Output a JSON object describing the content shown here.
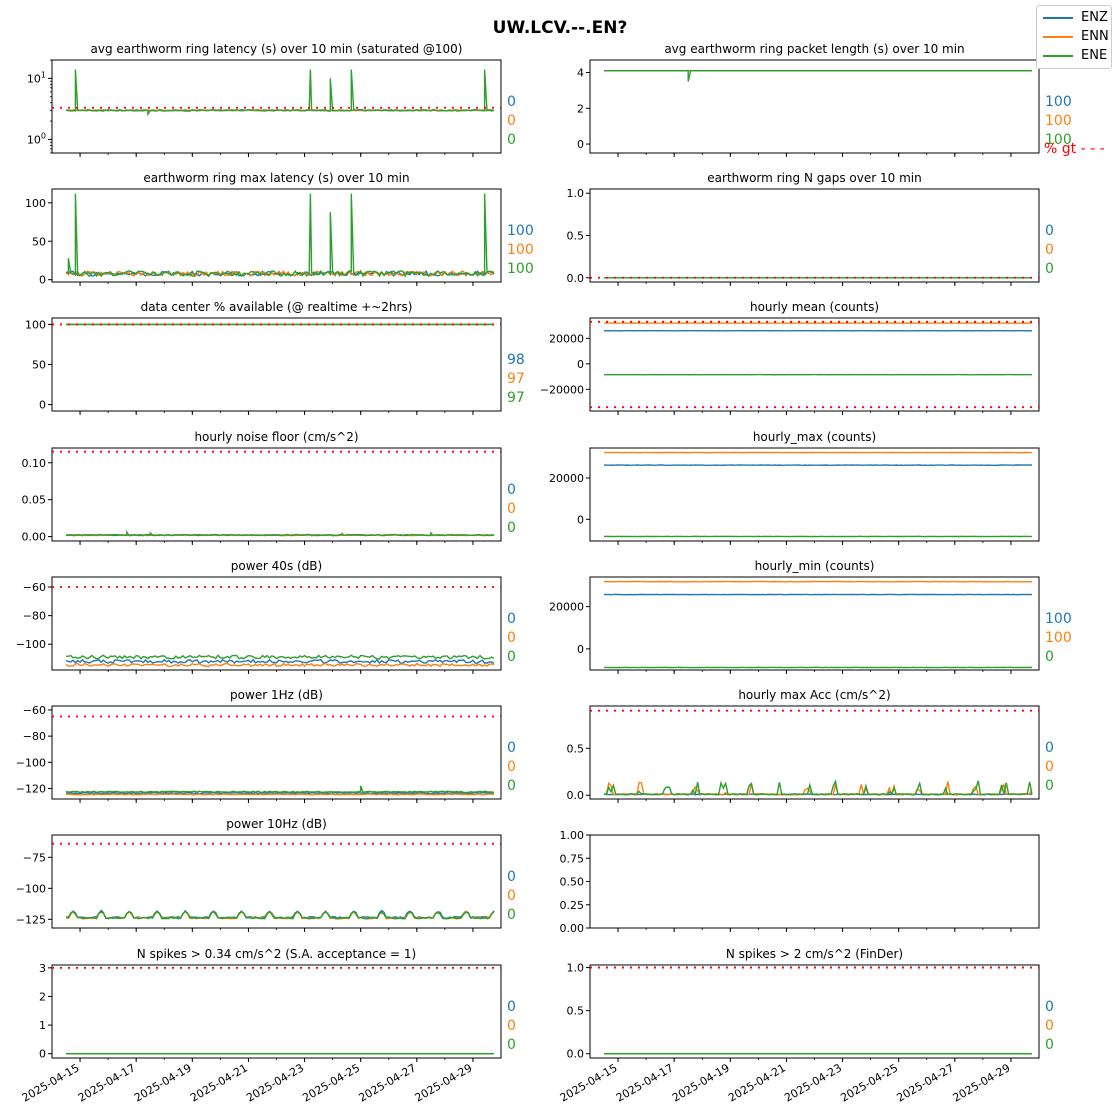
{
  "suptitle": "UW.LCV.--.EN?",
  "legend": [
    {
      "name": "ENZ",
      "color": "#1f77b4"
    },
    {
      "name": "ENN",
      "color": "#ff7f0e"
    },
    {
      "name": "ENE",
      "color": "#2ca02c"
    }
  ],
  "colors": {
    "ENZ": "#1f77b4",
    "ENN": "#ff7f0e",
    "ENE": "#2ca02c",
    "threshold": "#ff0000"
  },
  "chart_data": [
    {
      "type": "line",
      "title": "avg earthworm ring latency (s)   over 10 min (saturated @100)",
      "yscale": "log",
      "ylim": [
        0.6,
        20
      ],
      "yticks": [
        {
          "v": 1,
          "label": "10",
          "sup": "0"
        },
        {
          "v": 10,
          "label": "10",
          "sup": "1"
        }
      ],
      "threshold": 3.3,
      "series": [
        {
          "name": "ENZ",
          "base": 3.0,
          "noise": 0.05,
          "spikes": []
        },
        {
          "name": "ENN",
          "base": 3.0,
          "noise": 0.05,
          "spikes": []
        },
        {
          "name": "ENE",
          "base": 3.0,
          "noise": 0.08,
          "spikes": [
            [
              "2025-04-14 20:00",
              14
            ],
            [
              "2025-04-23 05:00",
              14
            ],
            [
              "2025-04-23 22:00",
              10
            ],
            [
              "2025-04-24 16:00",
              14
            ],
            [
              "2025-04-29 10:00",
              14
            ]
          ],
          "dips": [
            [
              "2025-04-17 10:00",
              2.6
            ]
          ]
        }
      ],
      "side_values": [
        "0",
        "0",
        "0"
      ]
    },
    {
      "type": "line",
      "title": "avg earthworm ring packet length (s)   over 10 min",
      "yscale": "linear",
      "ylim": [
        -0.5,
        4.7
      ],
      "yticks": [
        {
          "v": 0,
          "label": "0"
        },
        {
          "v": 2,
          "label": "2"
        },
        {
          "v": 4,
          "label": "4"
        }
      ],
      "threshold": null,
      "series": [
        {
          "name": "ENZ",
          "base": 4.1,
          "noise": 0.0,
          "spikes": []
        },
        {
          "name": "ENN",
          "base": 4.1,
          "noise": 0.0,
          "spikes": []
        },
        {
          "name": "ENE",
          "base": 4.1,
          "noise": 0.0,
          "spikes": [],
          "dips": [
            [
              "2025-04-17 12:00",
              3.5
            ]
          ]
        }
      ],
      "side_values": [
        "100",
        "100",
        "100"
      ],
      "side_note": "% gt - - -"
    },
    {
      "type": "line",
      "title": "earthworm ring max latency (s)   over 10 min",
      "yscale": "linear",
      "ylim": [
        -3,
        118
      ],
      "yticks": [
        {
          "v": 0,
          "label": "0"
        },
        {
          "v": 50,
          "label": "50"
        },
        {
          "v": 100,
          "label": "100"
        }
      ],
      "threshold": null,
      "series": [
        {
          "name": "ENZ",
          "base": 8,
          "noise": 3,
          "spikes": []
        },
        {
          "name": "ENN",
          "base": 8,
          "noise": 3,
          "spikes": []
        },
        {
          "name": "ENE",
          "base": 8,
          "noise": 3.5,
          "spikes": [
            [
              "2025-04-14 14:00",
              28
            ],
            [
              "2025-04-14 20:00",
              112
            ],
            [
              "2025-04-23 05:00",
              112
            ],
            [
              "2025-04-23 22:00",
              88
            ],
            [
              "2025-04-24 16:00",
              112
            ],
            [
              "2025-04-29 10:00",
              112
            ]
          ]
        }
      ],
      "side_values": [
        "100",
        "100",
        "100"
      ]
    },
    {
      "type": "line",
      "title": "earthworm ring N gaps   over 10 min",
      "yscale": "linear",
      "ylim": [
        -0.05,
        1.05
      ],
      "yticks": [
        {
          "v": 0,
          "label": "0.0"
        },
        {
          "v": 0.5,
          "label": "0.5"
        },
        {
          "v": 1,
          "label": "1.0"
        }
      ],
      "threshold": 0,
      "series": [
        {
          "name": "ENZ",
          "base": 0,
          "noise": 0,
          "spikes": []
        },
        {
          "name": "ENN",
          "base": 0,
          "noise": 0,
          "spikes": []
        },
        {
          "name": "ENE",
          "base": 0,
          "noise": 0,
          "spikes": []
        }
      ],
      "side_values": [
        "0",
        "0",
        "0"
      ]
    },
    {
      "type": "line",
      "title": "data center % available (@ realtime +~2hrs)",
      "yscale": "linear",
      "ylim": [
        -8,
        108
      ],
      "yticks": [
        {
          "v": 0,
          "label": "0"
        },
        {
          "v": 50,
          "label": "50"
        },
        {
          "v": 100,
          "label": "100"
        }
      ],
      "threshold": 100,
      "series": [
        {
          "name": "ENZ",
          "base": 100,
          "noise": 0,
          "spikes": []
        },
        {
          "name": "ENN",
          "base": 100,
          "noise": 0,
          "spikes": []
        },
        {
          "name": "ENE",
          "base": 100,
          "noise": 0,
          "spikes": []
        }
      ],
      "side_values": [
        "98",
        "97",
        "97"
      ]
    },
    {
      "type": "line",
      "title": "hourly mean (counts)",
      "yscale": "linear",
      "ylim": [
        -37000,
        36000
      ],
      "yticks": [
        {
          "v": -20000,
          "label": "−20000"
        },
        {
          "v": 0,
          "label": "0"
        },
        {
          "v": 20000,
          "label": "20000"
        }
      ],
      "threshold": [
        33000,
        -34000
      ],
      "series": [
        {
          "name": "ENZ",
          "base": 26000,
          "noise": 60,
          "spikes": []
        },
        {
          "name": "ENN",
          "base": 32000,
          "noise": 60,
          "spikes": []
        },
        {
          "name": "ENE",
          "base": -8500,
          "noise": 60,
          "spikes": []
        }
      ],
      "side_values": []
    },
    {
      "type": "line",
      "title": "hourly noise floor (cm/s^2)",
      "yscale": "linear",
      "ylim": [
        -0.006,
        0.12
      ],
      "yticks": [
        {
          "v": 0,
          "label": "0.00"
        },
        {
          "v": 0.05,
          "label": "0.05"
        },
        {
          "v": 0.1,
          "label": "0.10"
        }
      ],
      "threshold": 0.115,
      "series": [
        {
          "name": "ENZ",
          "base": 0.002,
          "noise": 0.0005,
          "spikes": []
        },
        {
          "name": "ENN",
          "base": 0.002,
          "noise": 0.0005,
          "spikes": []
        },
        {
          "name": "ENE",
          "base": 0.002,
          "noise": 0.0008,
          "spikes": [
            [
              "2025-04-16 16:00",
              0.006
            ],
            [
              "2025-04-17 12:00",
              0.005
            ],
            [
              "2025-04-24 08:00",
              0.004
            ],
            [
              "2025-04-27 12:00",
              0.005
            ]
          ]
        }
      ],
      "side_values": [
        "0",
        "0",
        "0"
      ]
    },
    {
      "type": "line",
      "title": "hourly_max (counts)",
      "yscale": "linear",
      "ylim": [
        -10500,
        34500
      ],
      "yticks": [
        {
          "v": 0,
          "label": "0"
        },
        {
          "v": 20000,
          "label": "20000"
        }
      ],
      "threshold": null,
      "series": [
        {
          "name": "ENZ",
          "base": 26200,
          "noise": 80,
          "spikes": []
        },
        {
          "name": "ENN",
          "base": 32300,
          "noise": 80,
          "spikes": []
        },
        {
          "name": "ENE",
          "base": -8300,
          "noise": 80,
          "spikes": []
        }
      ],
      "side_values": []
    },
    {
      "type": "line",
      "title": "power 40s (dB)",
      "yscale": "linear",
      "ylim": [
        -118,
        -53
      ],
      "yticks": [
        {
          "v": -100,
          "label": "−100"
        },
        {
          "v": -80,
          "label": "−80"
        },
        {
          "v": -60,
          "label": "−60"
        }
      ],
      "threshold": -60,
      "series": [
        {
          "name": "ENZ",
          "base": -112,
          "noise": 1.2,
          "spikes": []
        },
        {
          "name": "ENN",
          "base": -114.5,
          "noise": 1.0,
          "spikes": []
        },
        {
          "name": "ENE",
          "base": -109,
          "noise": 1.3,
          "spikes": []
        }
      ],
      "side_values": [
        "0",
        "0",
        "0"
      ]
    },
    {
      "type": "line",
      "title": "hourly_min (counts)",
      "yscale": "linear",
      "ylim": [
        -10000,
        34000
      ],
      "yticks": [
        {
          "v": 0,
          "label": "0"
        },
        {
          "v": 20000,
          "label": "20000"
        }
      ],
      "threshold": null,
      "series": [
        {
          "name": "ENZ",
          "base": 25700,
          "noise": 80,
          "spikes": []
        },
        {
          "name": "ENN",
          "base": 31800,
          "noise": 80,
          "spikes": []
        },
        {
          "name": "ENE",
          "base": -8800,
          "noise": 80,
          "spikes": []
        }
      ],
      "side_values": [
        "100",
        "100",
        "0"
      ]
    },
    {
      "type": "line",
      "title": "power 1Hz (dB)",
      "yscale": "linear",
      "ylim": [
        -128,
        -57
      ],
      "yticks": [
        {
          "v": -120,
          "label": "−120"
        },
        {
          "v": -100,
          "label": "−100"
        },
        {
          "v": -80,
          "label": "−80"
        },
        {
          "v": -60,
          "label": "−60"
        }
      ],
      "threshold": -65,
      "series": [
        {
          "name": "ENZ",
          "base": -123.5,
          "noise": 0.4,
          "spikes": []
        },
        {
          "name": "ENN",
          "base": -124.5,
          "noise": 0.4,
          "spikes": []
        },
        {
          "name": "ENE",
          "base": -122.5,
          "noise": 0.5,
          "spikes": [
            [
              "2025-04-25 00:00",
              -118
            ]
          ]
        }
      ],
      "side_values": [
        "0",
        "0",
        "0"
      ]
    },
    {
      "type": "line",
      "title": "hourly max Acc (cm/s^2)",
      "yscale": "linear",
      "ylim": [
        -0.04,
        0.95
      ],
      "yticks": [
        {
          "v": 0,
          "label": "0.0"
        },
        {
          "v": 0.5,
          "label": "0.5"
        }
      ],
      "threshold": 0.9,
      "series": [
        {
          "name": "ENZ",
          "base": 0.01,
          "noise": 0.004,
          "spikes": []
        },
        {
          "name": "ENN",
          "base": 0.01,
          "noise": 0.006,
          "bursts": true
        },
        {
          "name": "ENE",
          "base": 0.01,
          "noise": 0.006,
          "bursts": true
        }
      ],
      "side_values": [
        "0",
        "0",
        "0"
      ]
    },
    {
      "type": "line",
      "title": "power 10Hz (dB)",
      "yscale": "linear",
      "ylim": [
        -132,
        -57
      ],
      "yticks": [
        {
          "v": -125,
          "label": "−125"
        },
        {
          "v": -100,
          "label": "−100"
        },
        {
          "v": -75,
          "label": "−75"
        }
      ],
      "threshold": -64,
      "series": [
        {
          "name": "ENZ",
          "base": -123.5,
          "noise": 0.6,
          "diurnal": true
        },
        {
          "name": "ENN",
          "base": -124,
          "noise": 0.6,
          "diurnal": true
        },
        {
          "name": "ENE",
          "base": -124,
          "noise": 0.6,
          "diurnal": true
        }
      ],
      "side_values": [
        "0",
        "0",
        "0"
      ]
    },
    {
      "type": "line",
      "title": "",
      "empty": true,
      "yscale": "linear",
      "ylim": [
        0,
        1
      ],
      "yticks": [
        {
          "v": 0,
          "label": "0.00"
        },
        {
          "v": 0.25,
          "label": "0.25"
        },
        {
          "v": 0.5,
          "label": "0.50"
        },
        {
          "v": 0.75,
          "label": "0.75"
        },
        {
          "v": 1,
          "label": "1.00"
        }
      ],
      "threshold": null,
      "series": [],
      "side_values": []
    },
    {
      "type": "line",
      "title": "N spikes > 0.34 cm/s^2 (S.A. acceptance = 1)",
      "yscale": "linear",
      "ylim": [
        -0.15,
        3.1
      ],
      "yticks": [
        {
          "v": 0,
          "label": "0"
        },
        {
          "v": 1,
          "label": "1"
        },
        {
          "v": 2,
          "label": "2"
        },
        {
          "v": 3,
          "label": "3"
        }
      ],
      "threshold": 3,
      "series": [
        {
          "name": "ENZ",
          "base": 0,
          "noise": 0,
          "spikes": []
        },
        {
          "name": "ENN",
          "base": 0,
          "noise": 0,
          "spikes": []
        },
        {
          "name": "ENE",
          "base": 0,
          "noise": 0,
          "spikes": []
        }
      ],
      "side_values": [
        "0",
        "0",
        "0"
      ]
    },
    {
      "type": "line",
      "title": "N spikes > 2 cm/s^2 (FinDer)",
      "yscale": "linear",
      "ylim": [
        -0.05,
        1.03
      ],
      "yticks": [
        {
          "v": 0,
          "label": "0.0"
        },
        {
          "v": 0.5,
          "label": "0.5"
        },
        {
          "v": 1,
          "label": "1.0"
        }
      ],
      "threshold": 1,
      "series": [
        {
          "name": "ENZ",
          "base": 0,
          "noise": 0,
          "spikes": []
        },
        {
          "name": "ENN",
          "base": 0,
          "noise": 0,
          "spikes": []
        },
        {
          "name": "ENE",
          "base": 0,
          "noise": 0,
          "spikes": []
        }
      ],
      "side_values": [
        "0",
        "0",
        "0"
      ]
    }
  ],
  "x_axis": {
    "start": "2025-04-14 00:00",
    "end": "2025-04-30 00:00",
    "tick_labels": [
      "2025-04-15",
      "2025-04-17",
      "2025-04-19",
      "2025-04-21",
      "2025-04-23",
      "2025-04-25",
      "2025-04-27",
      "2025-04-29"
    ]
  }
}
